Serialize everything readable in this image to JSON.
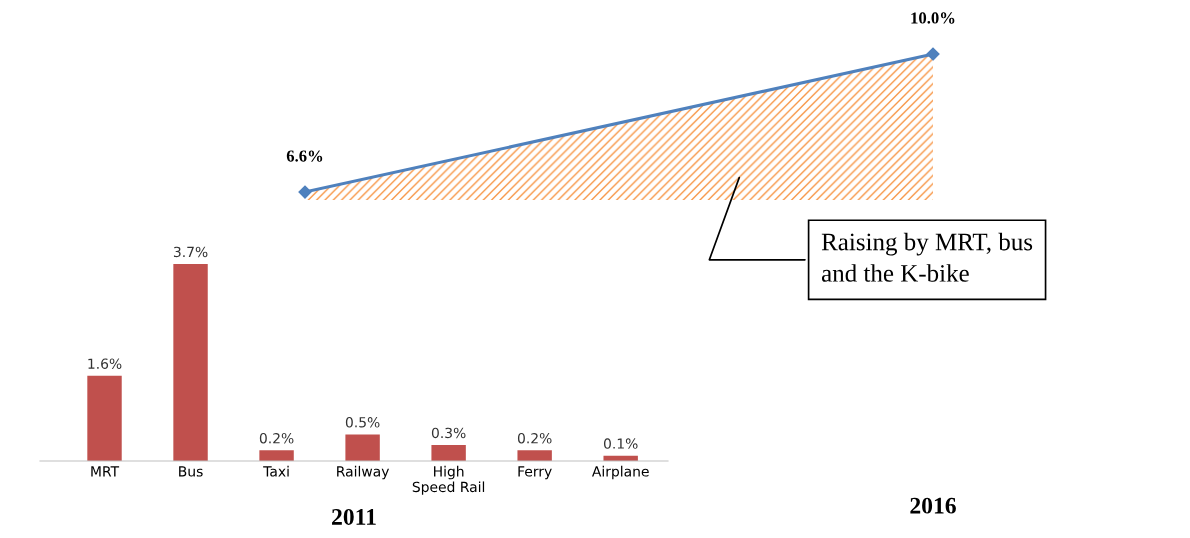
{
  "chart_data": [
    {
      "type": "bar",
      "xlabel": "2011",
      "categories": [
        "MRT",
        "Bus",
        "Taxi",
        "Railway",
        "High\nSpeed Rail",
        "Ferry",
        "Airplane"
      ],
      "values": [
        1.6,
        3.7,
        0.2,
        0.5,
        0.3,
        0.2,
        0.1
      ],
      "value_labels": [
        "1.6%",
        "3.7%",
        "0.2%",
        "0.5%",
        "0.3%",
        "0.2%",
        "0.1%"
      ],
      "color": "#c0504d",
      "tick_labels": "x",
      "grid": false,
      "legend": false
    },
    {
      "type": "area",
      "xlabel": "2016",
      "categories": [
        null,
        null
      ],
      "series": [
        {
          "color": "#4f81bd",
          "values": [
            6.6,
            10.0
          ],
          "value_labels": [
            "6.6%",
            "10.0%"
          ]
        }
      ],
      "marker": "diamond",
      "line_style": "solid",
      "tick_labels": false,
      "annotations": [
        "Raising by MRT, bus\nand the K-bike"
      ],
      "grid": false,
      "legend": false
    }
  ]
}
